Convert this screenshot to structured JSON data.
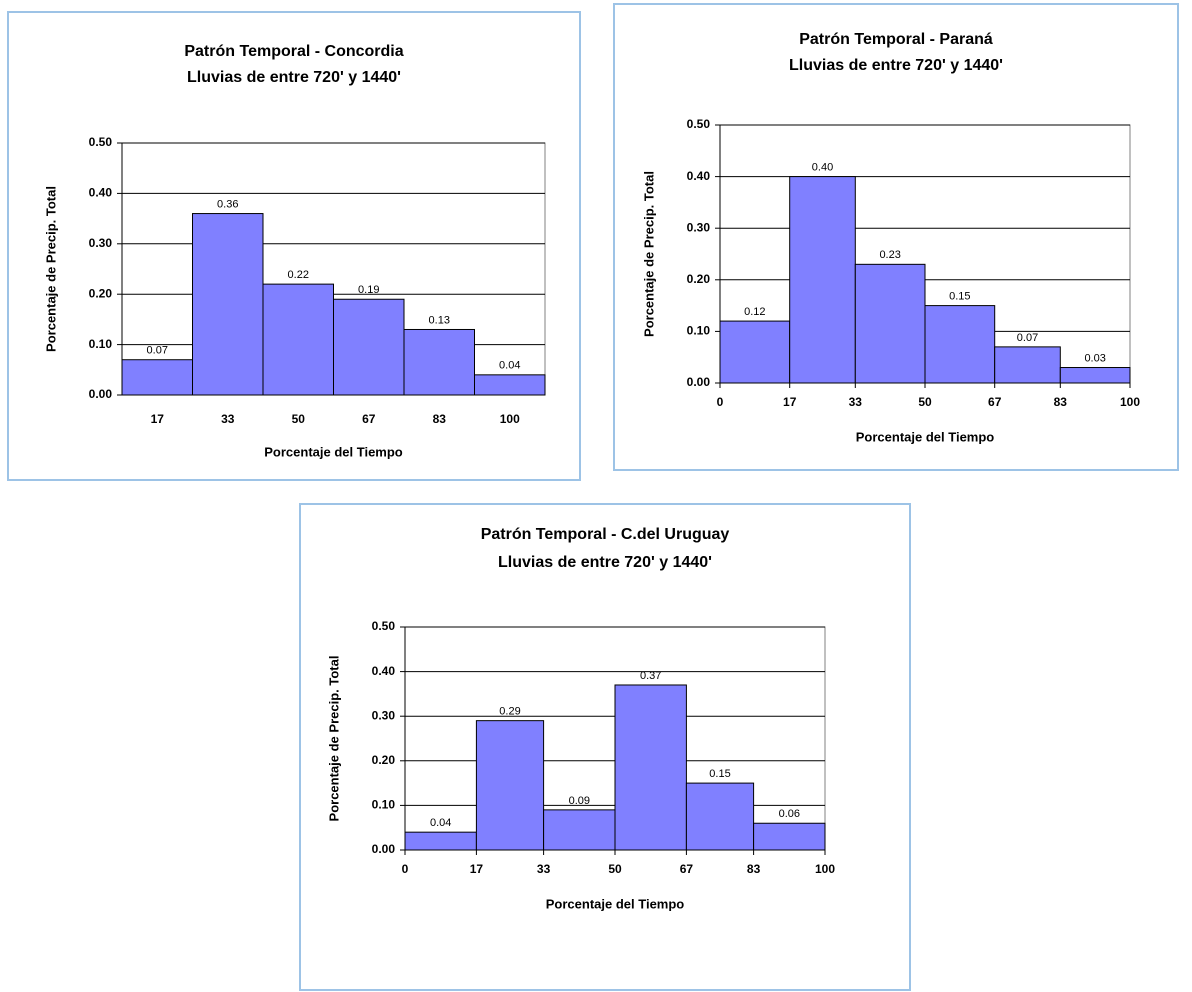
{
  "chart_data": [
    {
      "type": "bar",
      "title": "Patrón Temporal - Concordia",
      "subtitle": "Lluvias de entre 720' y 1440'",
      "xlabel": "Porcentaje del Tiempo",
      "ylabel": "Porcentaje de Precip. Total",
      "categories": [
        "17",
        "33",
        "50",
        "67",
        "83",
        "100"
      ],
      "values": [
        0.07,
        0.36,
        0.22,
        0.19,
        0.13,
        0.04
      ],
      "value_labels": [
        "0.07",
        "0.36",
        "0.22",
        "0.19",
        "0.13",
        "0.04"
      ],
      "color": "#8080ff",
      "ylim": [
        0,
        0.5
      ],
      "yticks": [
        {
          "value": 0,
          "label": "0.00"
        },
        {
          "value": 0.1,
          "label": "0.10"
        },
        {
          "value": 0.2,
          "label": "0.20"
        },
        {
          "value": 0.3,
          "label": "0.30"
        },
        {
          "value": 0.4,
          "label": "0.40"
        },
        {
          "value": 0.5,
          "label": "0.50"
        }
      ],
      "grid": true
    },
    {
      "type": "histogram",
      "title": "Patrón Temporal - Paraná",
      "subtitle": "Lluvias de entre 720' y 1440'",
      "xlabel": "Porcentaje del Tiempo",
      "ylabel": "Porcentaje de Precip. Total",
      "bins": [
        0,
        17,
        33,
        50,
        67,
        83,
        100
      ],
      "values": [
        0.12,
        0.4,
        0.23,
        0.15,
        0.07,
        0.03
      ],
      "value_labels": [
        "0.12",
        "0.40",
        "0.23",
        "0.15",
        "0.07",
        "0.03"
      ],
      "color": "#8080ff",
      "xlim": [
        0,
        100
      ],
      "ylim": [
        0,
        0.5
      ],
      "yticks": [
        {
          "value": 0,
          "label": "0.00"
        },
        {
          "value": 0.1,
          "label": "0.10"
        },
        {
          "value": 0.2,
          "label": "0.20"
        },
        {
          "value": 0.3,
          "label": "0.30"
        },
        {
          "value": 0.4,
          "label": "0.40"
        },
        {
          "value": 0.5,
          "label": "0.50"
        }
      ],
      "grid": true
    },
    {
      "type": "histogram",
      "title": "Patrón Temporal - C.del Uruguay",
      "subtitle": "Lluvias de entre 720' y 1440'",
      "xlabel": "Porcentaje del Tiempo",
      "ylabel": "Porcentaje de Precip. Total",
      "bins": [
        0,
        17,
        33,
        50,
        67,
        83,
        100
      ],
      "values": [
        0.04,
        0.29,
        0.09,
        0.37,
        0.15,
        0.06
      ],
      "value_labels": [
        "0.04",
        "0.29",
        "0.09",
        "0.37",
        "0.15",
        "0.06"
      ],
      "color": "#8080ff",
      "xlim": [
        0,
        100
      ],
      "ylim": [
        0,
        0.5
      ],
      "yticks": [
        {
          "value": 0,
          "label": "0.00"
        },
        {
          "value": 0.1,
          "label": "0.10"
        },
        {
          "value": 0.2,
          "label": "0.20"
        },
        {
          "value": 0.3,
          "label": "0.30"
        },
        {
          "value": 0.4,
          "label": "0.40"
        },
        {
          "value": 0.5,
          "label": "0.50"
        }
      ],
      "grid": true
    }
  ]
}
